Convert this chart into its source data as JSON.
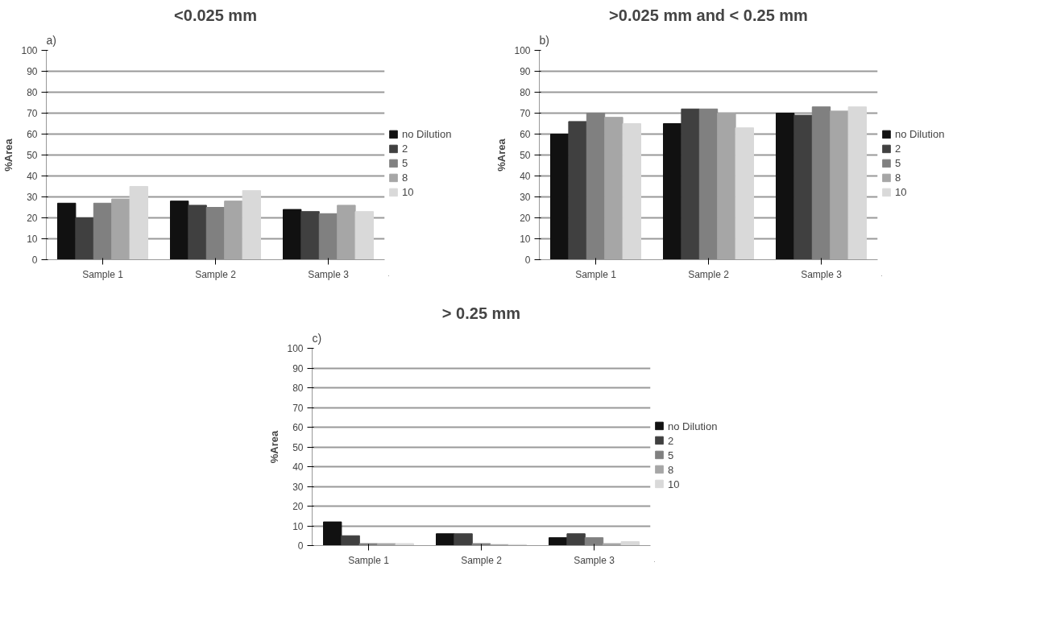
{
  "chart_data": [
    {
      "type": "bar",
      "title": "<0.025 mm",
      "ylabel": "%Area",
      "annotations": [
        "a)"
      ],
      "categories": [
        "Sample 1",
        "Sample 2",
        "Sample 3"
      ],
      "ylim": [
        0,
        100
      ],
      "yticks": [
        0,
        10,
        20,
        30,
        40,
        50,
        60,
        70,
        80,
        90,
        100
      ],
      "grid": "y",
      "legend": "right",
      "series": [
        {
          "name": "no Dilution",
          "color": "#111111",
          "values": [
            27,
            28,
            24
          ]
        },
        {
          "name": "2",
          "color": "#404040",
          "values": [
            20,
            26,
            23
          ]
        },
        {
          "name": "5",
          "color": "#808080",
          "values": [
            27,
            25,
            22
          ]
        },
        {
          "name": "8",
          "color": "#a6a6a6",
          "values": [
            29,
            28,
            26
          ]
        },
        {
          "name": "10",
          "color": "#d9d9d9",
          "values": [
            35,
            33,
            23
          ]
        }
      ]
    },
    {
      "type": "bar",
      "title": ">0.025 mm and < 0.25 mm",
      "ylabel": "%Area",
      "annotations": [
        "b)"
      ],
      "categories": [
        "Sample 1",
        "Sample 2",
        "Sample 3"
      ],
      "ylim": [
        0,
        100
      ],
      "yticks": [
        0,
        10,
        20,
        30,
        40,
        50,
        60,
        70,
        80,
        90,
        100
      ],
      "grid": "y",
      "legend": "right",
      "series": [
        {
          "name": "no Dilution",
          "color": "#111111",
          "values": [
            60,
            65,
            70
          ]
        },
        {
          "name": "2",
          "color": "#404040",
          "values": [
            66,
            72,
            69
          ]
        },
        {
          "name": "5",
          "color": "#808080",
          "values": [
            70,
            72,
            73
          ]
        },
        {
          "name": "8",
          "color": "#a6a6a6",
          "values": [
            68,
            70,
            71
          ]
        },
        {
          "name": "10",
          "color": "#d9d9d9",
          "values": [
            65,
            63,
            73
          ]
        }
      ]
    },
    {
      "type": "bar",
      "title": "> 0.25 mm",
      "ylabel": "%Area",
      "annotations": [
        "c)"
      ],
      "categories": [
        "Sample 1",
        "Sample 2",
        "Sample 3"
      ],
      "ylim": [
        0,
        100
      ],
      "yticks": [
        0,
        10,
        20,
        30,
        40,
        50,
        60,
        70,
        80,
        90,
        100
      ],
      "grid": "y",
      "legend": "right",
      "series": [
        {
          "name": "no Dilution",
          "color": "#111111",
          "values": [
            12,
            6,
            4
          ]
        },
        {
          "name": "2",
          "color": "#404040",
          "values": [
            5,
            6,
            6
          ]
        },
        {
          "name": "5",
          "color": "#808080",
          "values": [
            1,
            1,
            4
          ]
        },
        {
          "name": "8",
          "color": "#a6a6a6",
          "values": [
            1,
            0.5,
            1
          ]
        },
        {
          "name": "10",
          "color": "#d9d9d9",
          "values": [
            1,
            0.5,
            2
          ]
        }
      ]
    }
  ]
}
